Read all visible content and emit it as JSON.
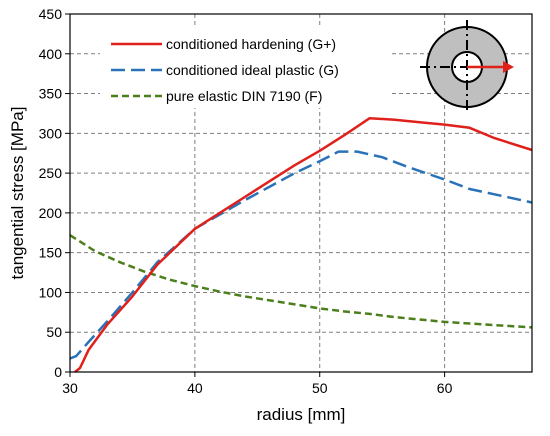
{
  "chart_data": {
    "type": "line",
    "xlabel": "radius [mm]",
    "ylabel": "tangential stress [MPa]",
    "xlim": [
      30,
      67
    ],
    "ylim": [
      0,
      450
    ],
    "x_ticks": [
      30,
      40,
      50,
      60
    ],
    "y_ticks": [
      0,
      50,
      100,
      150,
      200,
      250,
      300,
      350,
      400,
      450
    ],
    "grid": true,
    "legend_position": "top-left",
    "series": [
      {
        "name": "conditioned hardening (G+)",
        "color": "#e0201b",
        "style": "solid",
        "x": [
          30.4,
          30.8,
          31.5,
          33,
          35,
          37,
          39,
          40,
          42,
          44,
          46,
          48,
          50,
          52,
          54,
          56,
          58,
          60,
          62,
          64,
          67
        ],
        "y": [
          0,
          5,
          28,
          60,
          95,
          135,
          165,
          180,
          200,
          220,
          240,
          260,
          278,
          298,
          319,
          317,
          314,
          311,
          307,
          294,
          279
        ]
      },
      {
        "name": "conditioned ideal plastic (G)",
        "color": "#2a72b8",
        "style": "dashed",
        "x": [
          30,
          30.5,
          31.5,
          33,
          35,
          37,
          39,
          40,
          42,
          44,
          46,
          48,
          50,
          51.5,
          53,
          55,
          57,
          60,
          62,
          65,
          67
        ],
        "y": [
          17,
          20,
          38,
          64,
          100,
          138,
          166,
          180,
          198,
          216,
          233,
          250,
          265,
          277,
          277,
          270,
          258,
          242,
          230,
          220,
          213
        ]
      },
      {
        "name": "pure elastic DIN 7190 (F)",
        "color": "#4c7f1c",
        "style": "dashed",
        "x": [
          30,
          32,
          34,
          36,
          38,
          40,
          42,
          44,
          46,
          48,
          50,
          52,
          54,
          56,
          58,
          60,
          62,
          64,
          67
        ],
        "y": [
          172,
          152,
          138,
          126,
          116,
          108,
          101,
          95,
          90,
          85,
          80,
          76,
          73,
          69,
          66,
          63,
          61,
          59,
          56
        ]
      }
    ]
  }
}
